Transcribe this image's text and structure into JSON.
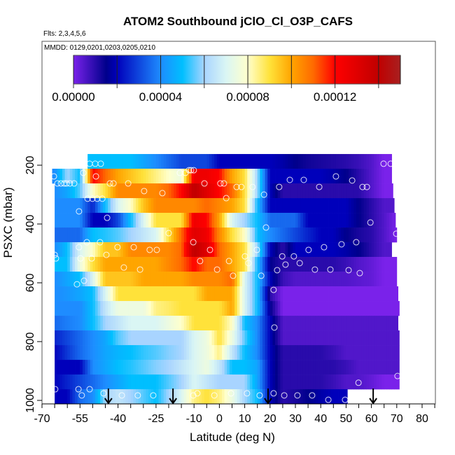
{
  "chart_data": {
    "type": "heatmap",
    "title": "ATOM2 Southbound jClO_Cl_O3P_CAFS",
    "subtitle_flights": "Flts: 2,3,4,5,6",
    "subtitle_dates": "MMDD: 0129,0201,0203,0205,0210",
    "xlabel": "Latitude (deg N)",
    "ylabel": "PSXC (mbar)",
    "xlim": [
      -70,
      85
    ],
    "ylim": [
      1010,
      -220
    ],
    "x_ticks": [
      -70,
      -65,
      -60,
      -55,
      -50,
      -45,
      -40,
      -35,
      -30,
      -25,
      -20,
      -15,
      -10,
      -5,
      0,
      5,
      10,
      15,
      20,
      25,
      30,
      35,
      40,
      45,
      50,
      55,
      60,
      65,
      70,
      75,
      80,
      85
    ],
    "x_tick_labels": [
      "-70",
      "-55",
      "-40",
      "-25",
      "-10",
      "0",
      "10",
      "20",
      "30",
      "40",
      "50",
      "60",
      "70",
      "80"
    ],
    "x_tick_label_values": [
      -70,
      -55,
      -40,
      -25,
      -10,
      0,
      10,
      20,
      30,
      40,
      50,
      60,
      70,
      80
    ],
    "y_tick_labels": [
      "200",
      "400",
      "600",
      "800",
      "1000"
    ],
    "y_tick_label_values": [
      200,
      400,
      600,
      800,
      1000
    ],
    "colorbar": {
      "range": [
        0,
        0.00015
      ],
      "divisions": [
        0,
        2e-05,
        4e-05,
        6e-05,
        8e-05,
        0.0001,
        0.00012,
        0.00014,
        0.00015
      ],
      "tick_labels": [
        "0.00000",
        "0.00004",
        "0.00008",
        "0.00012"
      ],
      "tick_label_values": [
        0,
        4e-05,
        8e-05,
        0.00012
      ],
      "tick_values": [
        0,
        2e-05,
        4e-05,
        6e-05,
        8e-05,
        0.0001,
        0.00012,
        0.00014
      ]
    },
    "value_scale": 1e-05,
    "lat_nodes": [
      -65,
      -60,
      -55,
      -50,
      -45,
      -40,
      -35,
      -30,
      -25,
      -20,
      -15,
      -10,
      -5,
      0,
      5,
      10,
      15,
      20,
      25,
      30,
      35,
      40,
      45,
      50,
      55,
      60,
      65,
      70
    ],
    "rows": [
      {
        "p": [
          162,
          212
        ],
        "lat": [
          -52,
          68
        ],
        "v": [
          5,
          5,
          5,
          5,
          5,
          5,
          5,
          4.5,
          4,
          3.5,
          3,
          3,
          3,
          2,
          2,
          2,
          2,
          2,
          1.8,
          1.5,
          1.3,
          1.2,
          1.1,
          1,
          0.8,
          0.5,
          0,
          0
        ]
      },
      {
        "p": [
          212,
          262
        ],
        "lat": [
          -66,
          68
        ],
        "v": [
          4,
          6,
          5,
          12,
          11,
          10,
          9.5,
          9,
          8.5,
          8,
          7.5,
          12.5,
          12.5,
          12,
          10,
          9,
          6,
          2,
          2,
          2,
          2,
          2,
          1.8,
          1.5,
          1,
          0.5,
          0,
          0
        ]
      },
      {
        "p": [
          262,
          312
        ],
        "lat": [
          -65,
          68.5
        ],
        "v": [
          4,
          4.5,
          5.5,
          8,
          9,
          10.5,
          10.5,
          10.5,
          10.5,
          11,
          12,
          14,
          13,
          12,
          11,
          9,
          6,
          2,
          1,
          1,
          1,
          1,
          1,
          1,
          1,
          0.5,
          0,
          0
        ]
      },
      {
        "p": [
          312,
          362
        ],
        "lat": [
          -65,
          69
        ],
        "v": [
          4,
          4,
          4,
          2.5,
          5,
          7,
          8,
          9.5,
          10.5,
          10.5,
          10.5,
          10.5,
          11,
          10.5,
          10,
          9,
          5,
          2,
          2,
          2,
          2,
          2,
          2,
          2,
          1.5,
          1,
          0.5,
          0.5
        ]
      },
      {
        "p": [
          362,
          412
        ],
        "lat": [
          -65,
          69.5
        ],
        "v": [
          4,
          4,
          4,
          2,
          2,
          3,
          5,
          7,
          9,
          9,
          9,
          12.5,
          12,
          10,
          7,
          6,
          5,
          3.5,
          3.5,
          3.5,
          2,
          2,
          2,
          2,
          1.5,
          1,
          0.5,
          0
        ]
      },
      {
        "p": [
          412,
          462
        ],
        "lat": [
          -65,
          70
        ],
        "v": [
          3.5,
          3.5,
          3.5,
          5,
          5.2,
          5.5,
          6,
          6.5,
          7,
          9,
          11,
          13,
          12.5,
          10.5,
          9,
          8,
          5,
          4,
          3.5,
          3,
          2.5,
          2,
          2,
          1.5,
          1.2,
          1,
          0.5,
          0
        ]
      },
      {
        "p": [
          462,
          512
        ],
        "lat": [
          -65,
          68
        ],
        "v": [
          4,
          5,
          7,
          8,
          9.5,
          9.5,
          10.5,
          10.5,
          10.5,
          10.5,
          11,
          14,
          13,
          11,
          10,
          9,
          6,
          2,
          1,
          2,
          2,
          2,
          2,
          1.8,
          1.5,
          1,
          0.5,
          0.5
        ]
      },
      {
        "p": [
          512,
          562
        ],
        "lat": [
          -65,
          70
        ],
        "v": [
          5,
          5,
          7.5,
          9,
          10,
          10,
          10,
          10,
          10,
          10.5,
          11,
          12,
          11,
          11,
          10,
          9,
          5,
          1.5,
          1,
          1,
          1,
          1,
          1,
          0.8,
          0.5,
          0.3,
          0,
          0
        ]
      },
      {
        "p": [
          562,
          612
        ],
        "lat": [
          -65,
          70
        ],
        "v": [
          4,
          4.5,
          5,
          7,
          9.5,
          9.5,
          9.5,
          10,
          10,
          10,
          10,
          10.5,
          10.5,
          10.5,
          11,
          7,
          5,
          2,
          0.8,
          0.5,
          0.5,
          0.5,
          0.5,
          0.5,
          0.4,
          0.3,
          0,
          0
        ]
      },
      {
        "p": [
          612,
          662
        ],
        "lat": [
          -65,
          70.5
        ],
        "v": [
          4,
          4.2,
          4.5,
          5,
          7,
          9,
          9,
          9,
          9,
          9,
          9,
          9,
          10,
          10,
          10,
          7,
          5,
          1,
          0,
          0,
          0,
          0,
          0,
          0,
          0,
          0,
          0,
          0
        ]
      },
      {
        "p": [
          662,
          712
        ],
        "lat": [
          -65,
          71
        ],
        "v": [
          4,
          4,
          4,
          5,
          6.5,
          7.5,
          7.5,
          7.5,
          8.5,
          8.7,
          9,
          9,
          9,
          9,
          10,
          7,
          5,
          1.5,
          0,
          0,
          0,
          0,
          0,
          0,
          0,
          0,
          0,
          0
        ]
      },
      {
        "p": [
          712,
          762
        ],
        "lat": [
          -65,
          70.5
        ],
        "v": [
          3.5,
          3.8,
          4,
          5,
          6,
          6.5,
          7,
          7,
          7,
          7.5,
          8,
          9,
          9,
          9,
          8,
          5,
          4,
          2,
          0.5,
          0.5,
          0.5,
          0.5,
          0.5,
          0.5,
          0.5,
          0.5,
          0.5,
          0.5
        ]
      },
      {
        "p": [
          762,
          812
        ],
        "lat": [
          -65,
          71
        ],
        "v": [
          2.5,
          3,
          3.5,
          4,
          4.5,
          5.5,
          6,
          6,
          6,
          6,
          6,
          7,
          7.5,
          9,
          7.5,
          5.5,
          4,
          2,
          0.5,
          0.5,
          0.5,
          0.5,
          0.5,
          0.5,
          0.5,
          0.5,
          0.5,
          0.5
        ]
      },
      {
        "p": [
          812,
          862
        ],
        "lat": [
          -65,
          71
        ],
        "v": [
          2,
          2.8,
          3.5,
          4,
          4.5,
          4.8,
          5,
          5.3,
          5.5,
          5.8,
          6,
          7,
          7.5,
          8.5,
          6.5,
          5,
          4,
          2,
          1,
          1,
          1,
          1,
          0.8,
          0.5,
          0.5,
          0.5,
          0.5,
          0.5
        ]
      },
      {
        "p": [
          862,
          912
        ],
        "lat": [
          -65,
          71
        ],
        "v": [
          2,
          2,
          2,
          4,
          4.5,
          5,
          5.2,
          5.5,
          5.8,
          6,
          6.5,
          7,
          7.5,
          6.5,
          5,
          5,
          4.5,
          2,
          1,
          1,
          1,
          1,
          1,
          0.8,
          0.5,
          0.5,
          0.5,
          0.5
        ]
      },
      {
        "p": [
          912,
          962
        ],
        "lat": [
          -65,
          71
        ],
        "v": [
          2,
          2.5,
          3,
          3.5,
          4,
          4.5,
          5,
          5,
          5,
          5.5,
          6,
          7,
          6.5,
          6,
          6,
          6,
          4.5,
          2,
          1,
          1,
          1,
          1,
          0.8,
          0.5,
          0.5,
          0.3,
          0,
          0
        ]
      },
      {
        "p": [
          962,
          1012
        ],
        "lat": [
          -65,
          50.5
        ],
        "v": [
          2,
          2,
          3.5,
          4,
          6,
          6.5,
          6,
          5.5,
          5,
          6,
          7,
          8.5,
          9,
          8.5,
          7.5,
          6,
          5,
          2,
          1,
          1.2,
          1.5,
          1.8,
          2,
          2,
          2,
          2,
          2,
          2
        ]
      }
    ],
    "observations": [
      [
        -51.2,
        195
      ],
      [
        -49.0,
        195
      ],
      [
        -46.8,
        195
      ],
      [
        64.8,
        195
      ],
      [
        67.6,
        195
      ],
      [
        -12.0,
        217
      ],
      [
        -11.2,
        217
      ],
      [
        -10.1,
        217
      ],
      [
        -15.6,
        226
      ],
      [
        -13.4,
        226
      ],
      [
        -53.7,
        226
      ],
      [
        -65.3,
        238
      ],
      [
        -48.7,
        238
      ],
      [
        27.8,
        250
      ],
      [
        33.3,
        250
      ],
      [
        46.0,
        238
      ],
      [
        52.4,
        252
      ],
      [
        -63.9,
        262
      ],
      [
        -62.5,
        262
      ],
      [
        -61.2,
        262
      ],
      [
        -60.3,
        262
      ],
      [
        -59.0,
        262
      ],
      [
        -57.3,
        262
      ],
      [
        -43.2,
        262
      ],
      [
        -41.8,
        262
      ],
      [
        -36.0,
        262
      ],
      [
        -5.9,
        262
      ],
      [
        0.4,
        262
      ],
      [
        1.8,
        262
      ],
      [
        6.8,
        274
      ],
      [
        8.7,
        274
      ],
      [
        13.1,
        274
      ],
      [
        23.6,
        274
      ],
      [
        39.4,
        274
      ],
      [
        56.5,
        274
      ],
      [
        58.2,
        274
      ],
      [
        -29.7,
        288
      ],
      [
        -22.5,
        295
      ],
      [
        17.6,
        300
      ],
      [
        2.7,
        312
      ],
      [
        -52.0,
        314
      ],
      [
        -50.1,
        314
      ],
      [
        -48.2,
        314
      ],
      [
        -46.2,
        314
      ],
      [
        -55.4,
        357
      ],
      [
        -44.3,
        379
      ],
      [
        59.6,
        395
      ],
      [
        18.4,
        412
      ],
      [
        -20.0,
        431
      ],
      [
        69.8,
        433
      ],
      [
        -52.3,
        462
      ],
      [
        -47.1,
        462
      ],
      [
        -10.3,
        462
      ],
      [
        54.0,
        462
      ],
      [
        48.2,
        469
      ],
      [
        -55.4,
        479
      ],
      [
        -40.2,
        479
      ],
      [
        -33.8,
        479
      ],
      [
        41.3,
        479
      ],
      [
        -27.5,
        488
      ],
      [
        -24.7,
        488
      ],
      [
        -3.7,
        488
      ],
      [
        14.8,
        488
      ],
      [
        35.2,
        488
      ],
      [
        -65.0,
        505
      ],
      [
        -44.6,
        505
      ],
      [
        24.8,
        510
      ],
      [
        29.4,
        510
      ],
      [
        10.1,
        510
      ],
      [
        -64.5,
        517
      ],
      [
        -54.8,
        517
      ],
      [
        -50.4,
        517
      ],
      [
        -7.6,
        526
      ],
      [
        3.8,
        526
      ],
      [
        31.7,
        533
      ],
      [
        11.5,
        533
      ],
      [
        26.1,
        538
      ],
      [
        -37.7,
        548
      ],
      [
        -31.3,
        555
      ],
      [
        -0.9,
        555
      ],
      [
        37.7,
        555
      ],
      [
        43.8,
        555
      ],
      [
        51.0,
        557
      ],
      [
        22.8,
        557
      ],
      [
        55.4,
        567
      ],
      [
        5.4,
        576
      ],
      [
        16.5,
        576
      ],
      [
        -53.4,
        593
      ],
      [
        -56.2,
        605
      ],
      [
        21.4,
        624
      ],
      [
        21.7,
        752
      ],
      [
        70.3,
        917
      ],
      [
        54.9,
        940
      ],
      [
        -64.8,
        962
      ],
      [
        -55.6,
        962
      ],
      [
        -51.2,
        962
      ],
      [
        -45.7,
        976
      ],
      [
        -8.7,
        976
      ],
      [
        4.6,
        976
      ],
      [
        10.9,
        976
      ],
      [
        21.4,
        976
      ],
      [
        -54.3,
        983
      ],
      [
        -38.5,
        983
      ],
      [
        -32.2,
        983
      ],
      [
        -26.1,
        983
      ],
      [
        -10.3,
        983
      ],
      [
        -2.0,
        983
      ],
      [
        15.9,
        983
      ],
      [
        25.6,
        983
      ],
      [
        30.8,
        983
      ],
      [
        36.6,
        983
      ],
      [
        43.0,
        998
      ],
      [
        49.6,
        998
      ]
    ],
    "arrows_lat": [
      -43.8,
      -18.3,
      19.2,
      60.7
    ],
    "colormap": [
      [
        0,
        "#7a22ea"
      ],
      [
        1.5,
        "#00008b"
      ],
      [
        2,
        "#0000bb"
      ],
      [
        4,
        "#1e8cff"
      ],
      [
        5,
        "#00bfff"
      ],
      [
        6,
        "#a8d4ff"
      ],
      [
        7,
        "#daf6f4"
      ],
      [
        8,
        "#ffffcc"
      ],
      [
        9,
        "#ffe23a"
      ],
      [
        10,
        "#ffa500"
      ],
      [
        11,
        "#ff6a00"
      ],
      [
        12,
        "#ff0000"
      ],
      [
        14,
        "#c00000"
      ],
      [
        15,
        "#a82020"
      ]
    ]
  }
}
